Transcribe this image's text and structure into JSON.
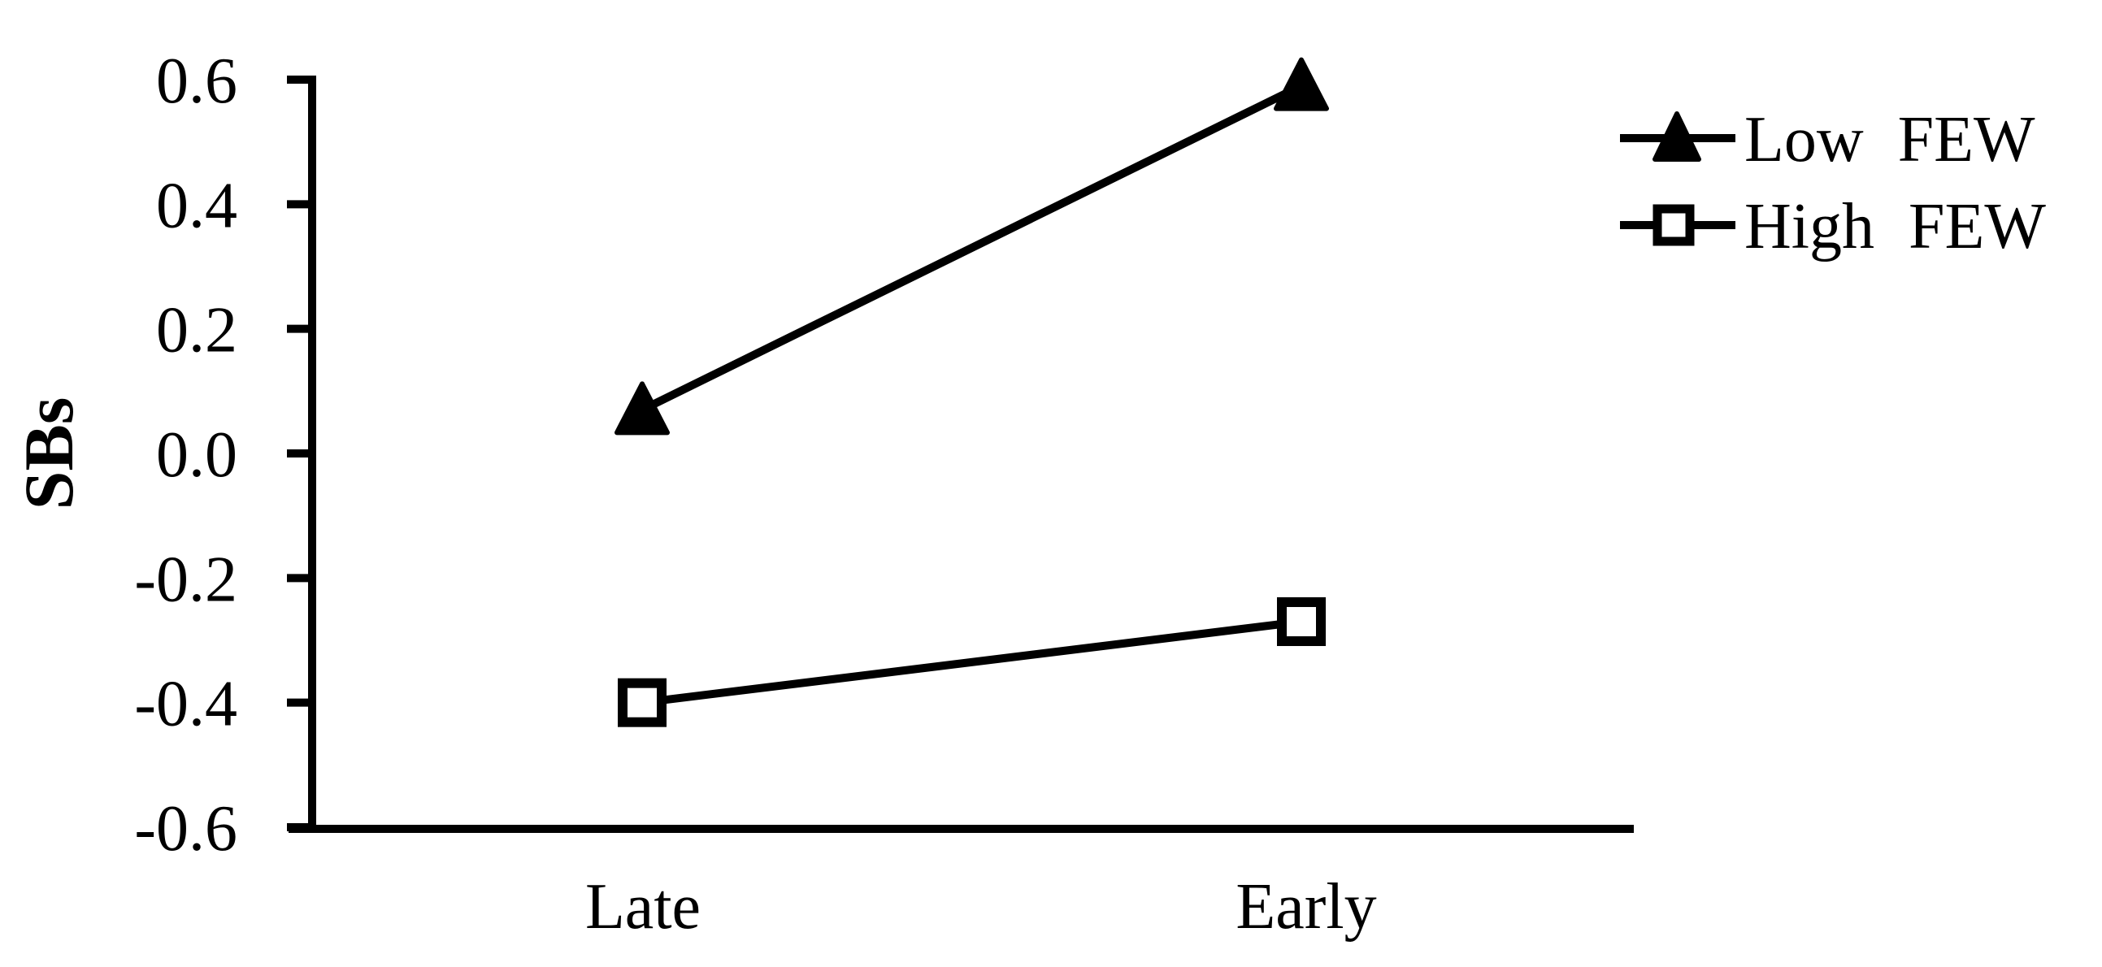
{
  "page": {
    "background_color": "#ffffff",
    "foreground_color": "#000000"
  },
  "chart_data": {
    "type": "line",
    "title": "",
    "xlabel": "",
    "ylabel": "SBs",
    "categories": [
      "Late",
      "Early"
    ],
    "ylim": [
      -0.6,
      0.6
    ],
    "yticks": [
      0.6,
      0.4,
      0.2,
      0.0,
      -0.2,
      -0.4,
      -0.6
    ],
    "ytick_labels": [
      "0.6",
      "0.4",
      "0.2",
      "0.0",
      "-0.2",
      "-0.4",
      "-0.6"
    ],
    "grid": false,
    "legend_position": "outside-top-right",
    "series": [
      {
        "name": "Low FEW",
        "marker": "filled-triangle",
        "color": "#000000",
        "values": [
          0.07,
          0.59
        ]
      },
      {
        "name": "High FEW",
        "marker": "open-square",
        "color": "#000000",
        "values": [
          -0.4,
          -0.27
        ]
      }
    ]
  }
}
